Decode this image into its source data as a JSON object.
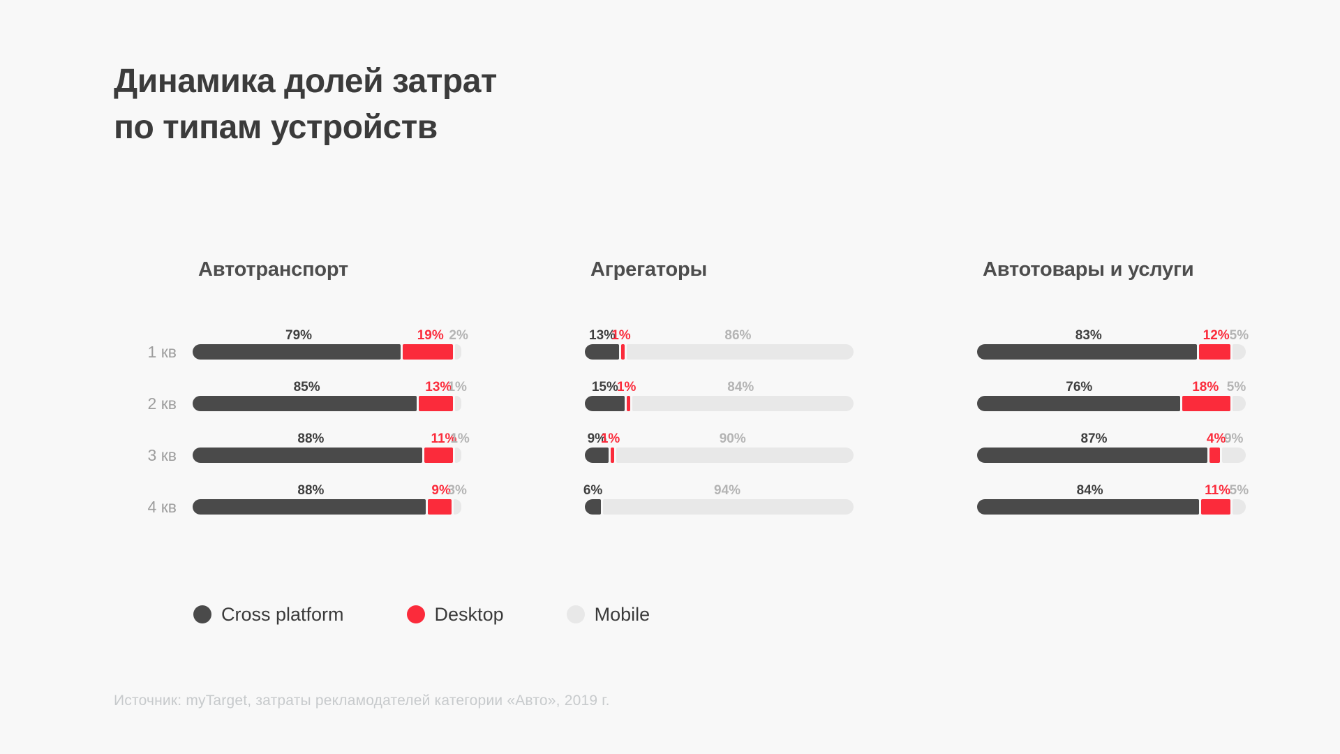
{
  "title": {
    "line1": "Динамика долей затрат",
    "line2": "по типам устройств"
  },
  "colors": {
    "cross": "#4a4a4a",
    "desktop": "#fb2b3b",
    "mobile": "#e8e8e8",
    "cross_label": "#3f3f3f",
    "mobile_label": "#b4b4b4",
    "category_label": "#9d9d9d",
    "background": "#f8f8f8"
  },
  "chart_data": {
    "type": "bar",
    "variant": "horizontal-stacked-100",
    "unit": "%",
    "categories": [
      "1 кв",
      "2 кв",
      "3 кв",
      "4 кв"
    ],
    "series_names": [
      "Cross platform",
      "Desktop",
      "Mobile"
    ],
    "xlim": [
      0,
      100
    ],
    "grid": false,
    "legend_position": "bottom",
    "groups": [
      {
        "title": "Автотранспорт",
        "show_category_labels": true,
        "series": [
          {
            "name": "Cross platform",
            "values": [
              79,
              85,
              88,
              88
            ]
          },
          {
            "name": "Desktop",
            "values": [
              19,
              13,
              11,
              9
            ]
          },
          {
            "name": "Mobile",
            "values": [
              2,
              1,
              1,
              3
            ]
          }
        ]
      },
      {
        "title": "Агрегаторы",
        "show_category_labels": false,
        "series": [
          {
            "name": "Cross platform",
            "values": [
              13,
              15,
              9,
              6
            ]
          },
          {
            "name": "Desktop",
            "values": [
              1,
              1,
              1,
              0
            ]
          },
          {
            "name": "Mobile",
            "values": [
              86,
              84,
              90,
              94
            ]
          }
        ]
      },
      {
        "title": "Автотовары и услуги",
        "show_category_labels": false,
        "series": [
          {
            "name": "Cross platform",
            "values": [
              83,
              76,
              87,
              84
            ]
          },
          {
            "name": "Desktop",
            "values": [
              12,
              18,
              4,
              11
            ]
          },
          {
            "name": "Mobile",
            "values": [
              5,
              5,
              9,
              5
            ]
          }
        ]
      }
    ]
  },
  "legend": {
    "items": [
      {
        "label": "Cross platform",
        "key": "cross"
      },
      {
        "label": "Desktop",
        "key": "desktop"
      },
      {
        "label": "Mobile",
        "key": "mobile"
      }
    ]
  },
  "source": "Источник: myTarget, затраты рекламодателей категории «Авто», 2019 г."
}
